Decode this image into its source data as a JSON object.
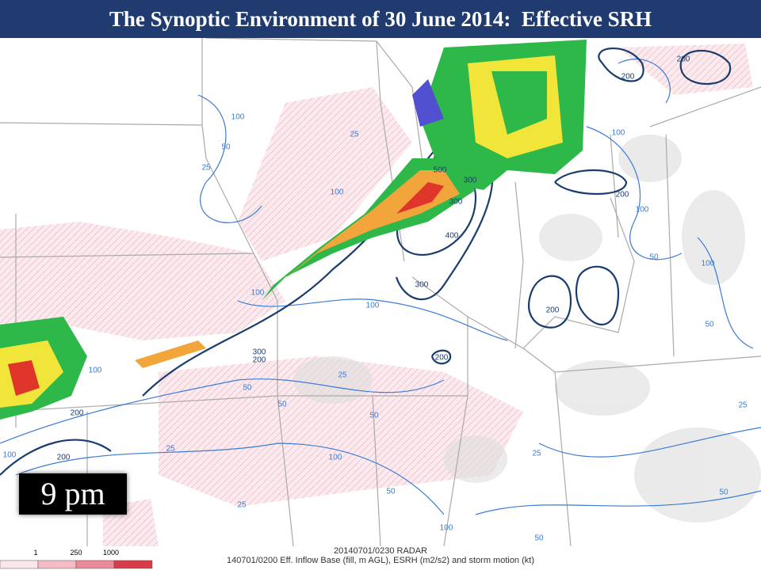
{
  "header": {
    "title": "The Synoptic Environment of 30 June 2014:  Effective SRH"
  },
  "time_label": "9 pm",
  "legend": {
    "ticks": [
      "1",
      "250",
      "1000"
    ]
  },
  "footer": {
    "radar": "20140701/0230 RADAR",
    "caption": "140701/0200 Eff. Inflow Base (fill, m AGL), ESRH (m2/s2) and storm motion (kt)"
  },
  "contour_labels": [
    "100",
    "50",
    "25",
    "25",
    "100",
    "500",
    "300",
    "300",
    "400",
    "300",
    "100",
    "200",
    "200",
    "200",
    "200",
    "200",
    "100",
    "100",
    "50",
    "100",
    "100",
    "300",
    "200",
    "100",
    "200",
    "200",
    "100",
    "50",
    "50",
    "50",
    "25",
    "100",
    "25",
    "25",
    "50",
    "100",
    "25",
    "50",
    "25",
    "50",
    "50"
  ]
}
